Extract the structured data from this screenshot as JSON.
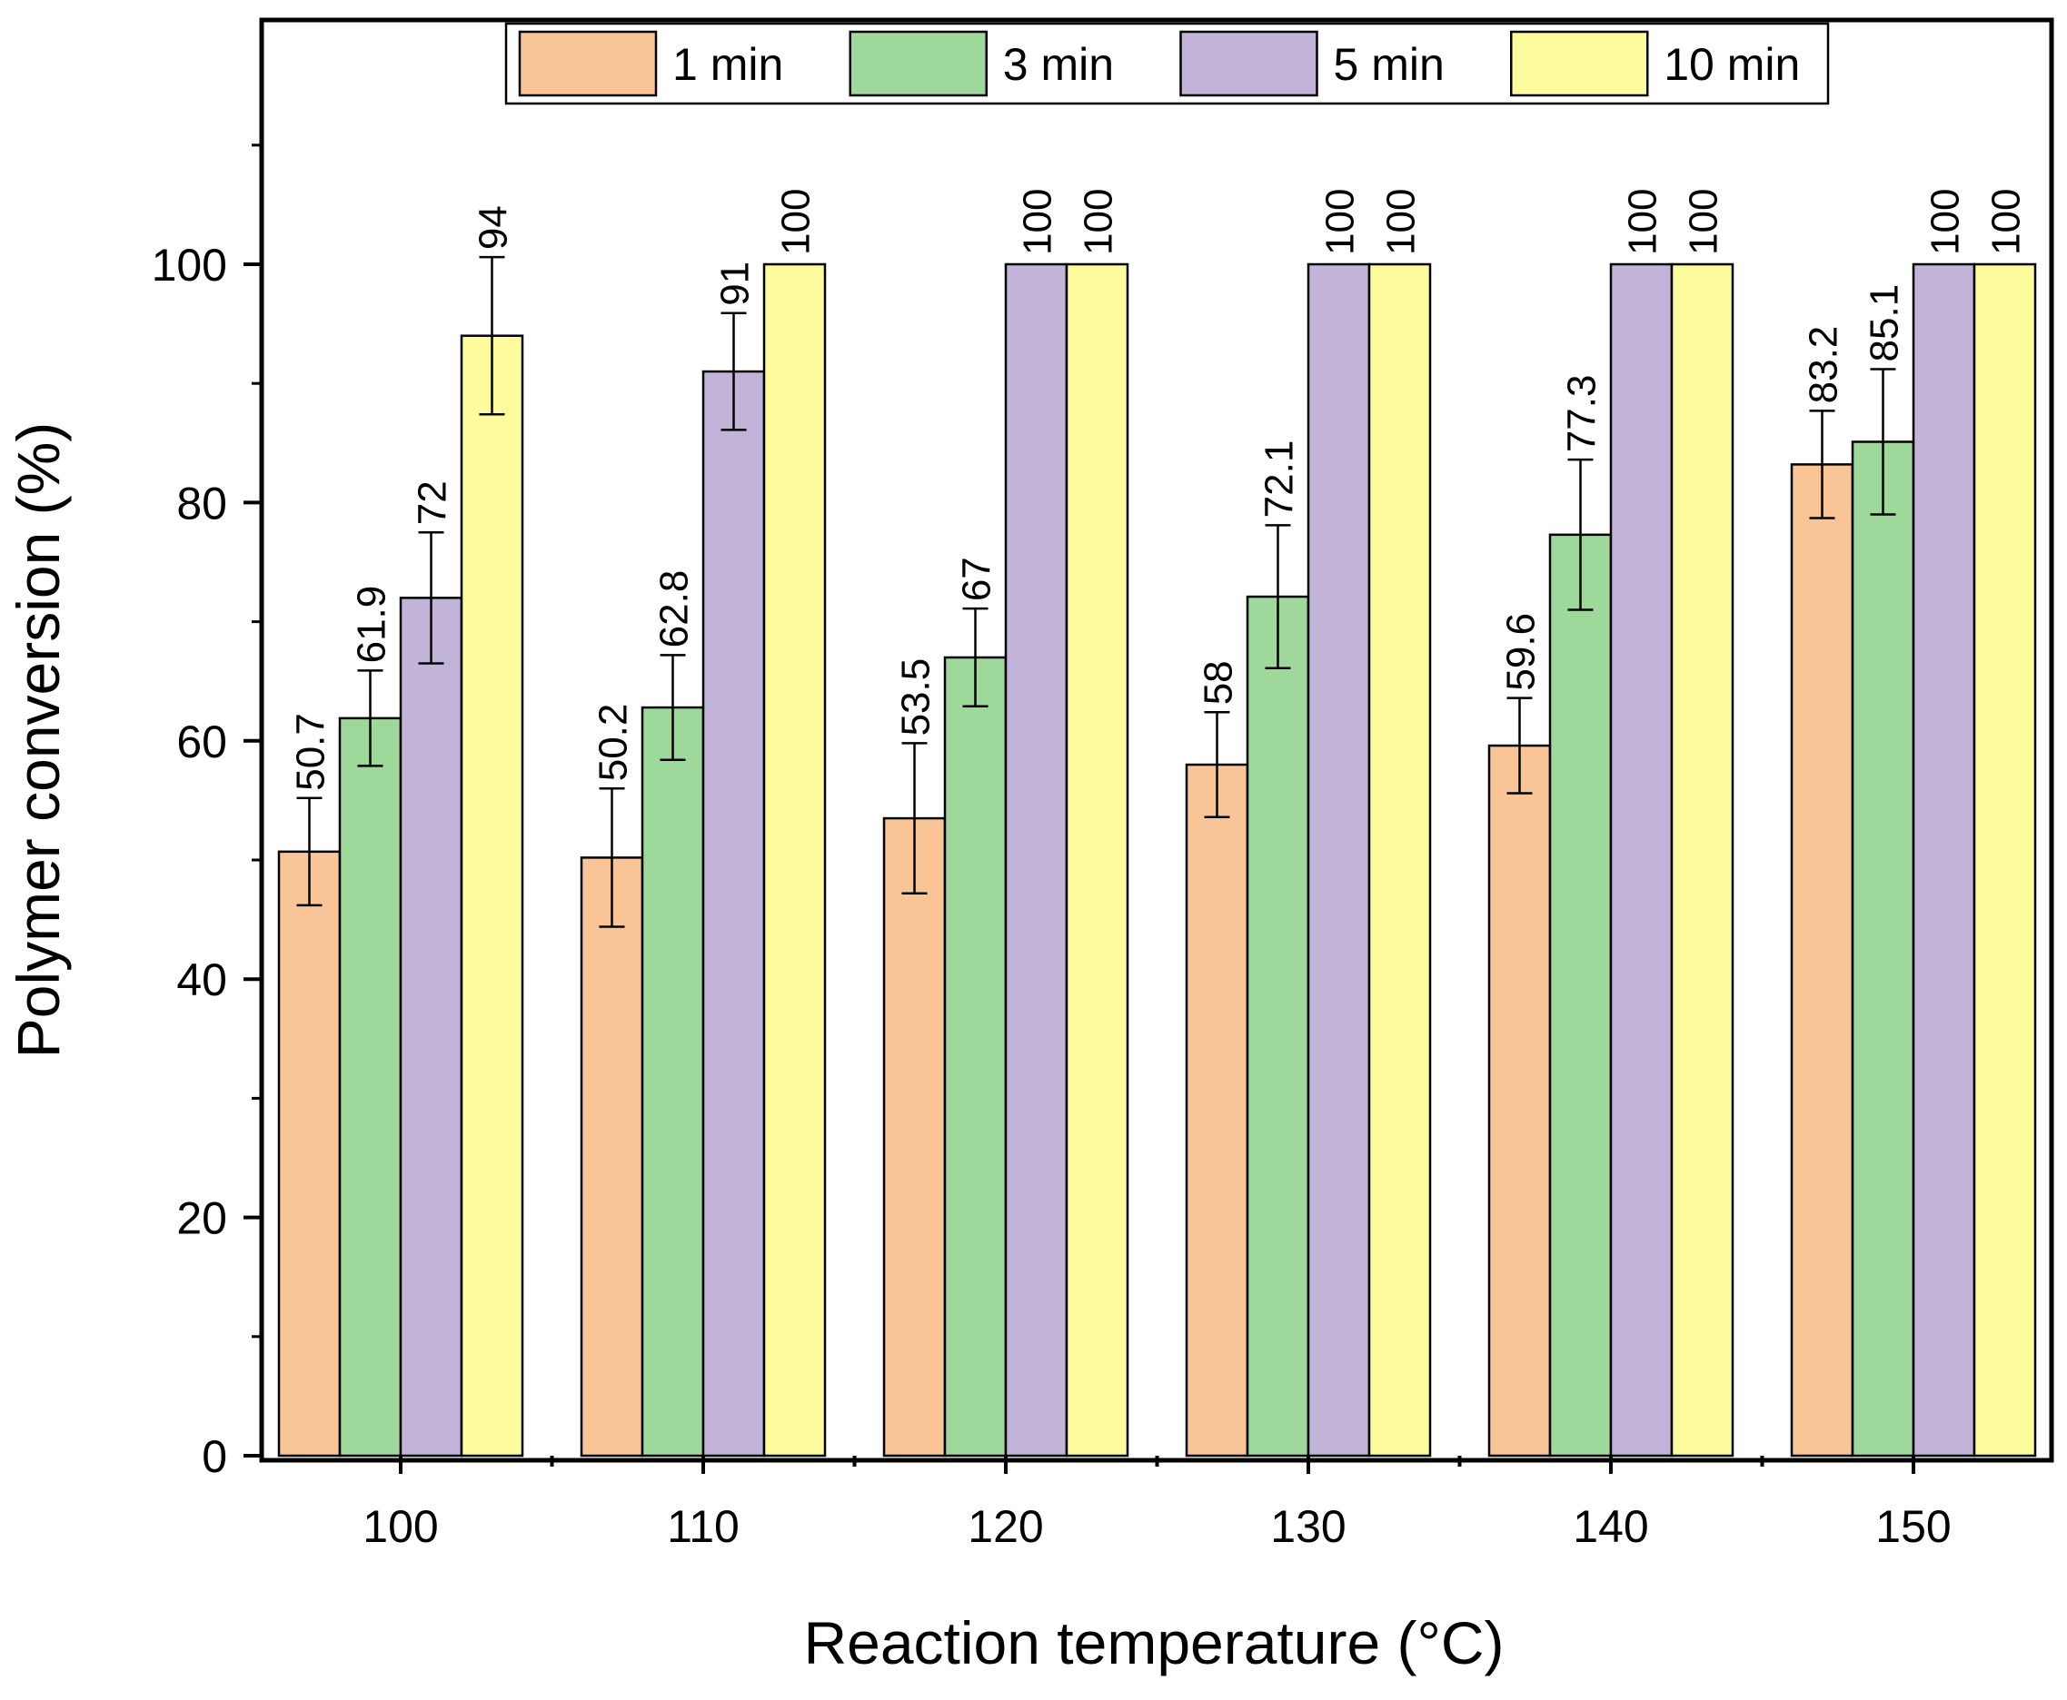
{
  "chart_data": {
    "type": "bar",
    "title": "",
    "xlabel": "Reaction temperature (°C)",
    "ylabel": "Polymer conversion (%)",
    "categories": [
      "100",
      "110",
      "120",
      "130",
      "140",
      "150"
    ],
    "ylim": [
      0,
      120
    ],
    "yticks": [
      0,
      20,
      40,
      60,
      80,
      100
    ],
    "grid": false,
    "legend_position": "top-center",
    "series": [
      {
        "name": "1 min",
        "color": "#f9c596",
        "values": [
          50.7,
          50.2,
          53.5,
          58,
          59.6,
          83.2
        ],
        "errors": [
          4.5,
          5.8,
          6.3,
          4.4,
          4.0,
          4.5
        ],
        "labels": [
          "50.7",
          "50.2",
          "53.5",
          "58",
          "59.6",
          "83.2"
        ]
      },
      {
        "name": "3 min",
        "color": "#9ed99b",
        "values": [
          61.9,
          62.8,
          67,
          72.1,
          77.3,
          85.1
        ],
        "errors": [
          4.0,
          4.4,
          4.1,
          6.0,
          6.3,
          6.1
        ],
        "labels": [
          "61.9",
          "62.8",
          "67",
          "72.1",
          "77.3",
          "85.1"
        ]
      },
      {
        "name": "5 min",
        "color": "#c2b4d9",
        "values": [
          72,
          91,
          100,
          100,
          100,
          100
        ],
        "errors": [
          5.5,
          4.9,
          0,
          0,
          0,
          0
        ],
        "labels": [
          "72",
          "91",
          "100",
          "100",
          "100",
          "100"
        ]
      },
      {
        "name": "10 min",
        "color": "#fdfc9c",
        "values": [
          94,
          100,
          100,
          100,
          100,
          100
        ],
        "errors": [
          6.6,
          0,
          0,
          0,
          0,
          0
        ],
        "labels": [
          "94",
          "100",
          "100",
          "100",
          "100",
          "100"
        ]
      }
    ]
  }
}
